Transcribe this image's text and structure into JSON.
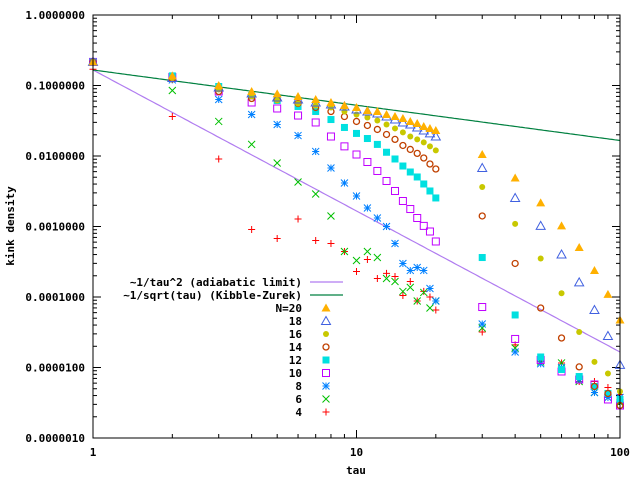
{
  "chart_data": {
    "type": "scatter",
    "xlabel": "tau",
    "ylabel": "kink density",
    "xscale": "log",
    "yscale": "log",
    "xlim": [
      1,
      100
    ],
    "ylim": [
      1e-06,
      1
    ],
    "x_ticks": [
      "1",
      "10",
      "100"
    ],
    "y_ticks": [
      "1.0000000",
      "0.1000000",
      "0.0100000",
      "0.0010000",
      "0.0001000",
      "0.0000100",
      "0.0000010"
    ],
    "grid": false,
    "legend_position": "bottom-left",
    "curves": [
      {
        "name": "~1/tau^2 (adiabatic limit)",
        "formula": "0.166/tau^2",
        "color": "#b07cf0"
      },
      {
        "name": "~1/sqrt(tau) (Kibble-Zurek)",
        "formula": "0.166/sqrt(tau)",
        "color": "#008040"
      }
    ],
    "x": [
      1,
      2,
      3,
      4,
      5,
      6,
      7,
      8,
      9,
      10,
      11,
      12,
      13,
      14,
      15,
      16,
      17,
      18,
      19,
      20,
      30,
      40,
      50,
      60,
      70,
      80,
      90,
      100
    ],
    "series": [
      {
        "name": "N=20",
        "marker": "triangle-filled",
        "color": "#ffb000",
        "values": [
          0.216,
          0.137,
          0.1,
          0.0822,
          0.076,
          0.0698,
          0.0633,
          0.0574,
          0.052,
          0.0488,
          0.044,
          0.0428,
          0.0388,
          0.0363,
          0.034,
          0.0309,
          0.0289,
          0.0262,
          0.0246,
          0.023,
          0.0105,
          0.00488,
          0.00216,
          0.00102,
          0.000504,
          0.000238,
          0.000109,
          4.72e-05
        ]
      },
      {
        "name": "18",
        "marker": "triangle-open",
        "color": "#4060e0",
        "values": [
          0.216,
          0.128,
          0.0937,
          0.077,
          0.0676,
          0.0633,
          0.0574,
          0.0538,
          0.0504,
          0.0457,
          0.0428,
          0.0401,
          0.0363,
          0.0329,
          0.0299,
          0.028,
          0.0254,
          0.023,
          0.0209,
          0.0189,
          0.00676,
          0.00254,
          0.00102,
          0.000401,
          0.000161,
          6.54e-05,
          2.8e-05,
          1.09e-05
        ]
      },
      {
        "name": "16",
        "marker": "circle-filled",
        "color": "#c8c800",
        "values": [
          0.216,
          0.128,
          0.0878,
          0.0698,
          0.0613,
          0.0556,
          0.052,
          0.0488,
          0.0428,
          0.0388,
          0.0352,
          0.0319,
          0.028,
          0.0246,
          0.0216,
          0.0189,
          0.0172,
          0.0156,
          0.0137,
          0.012,
          0.00363,
          0.00109,
          0.000352,
          0.000113,
          3.19e-05,
          1.2e-05,
          8.22e-06,
          4.57e-06
        ]
      },
      {
        "name": "14",
        "marker": "circle-open",
        "color": "#c04000",
        "values": [
          0.216,
          0.124,
          0.0822,
          0.0654,
          0.0633,
          0.0556,
          0.0488,
          0.0428,
          0.0363,
          0.0309,
          0.0271,
          0.0238,
          0.0202,
          0.0172,
          0.0141,
          0.0124,
          0.0109,
          0.00937,
          0.0077,
          0.00654,
          0.00141,
          0.000299,
          6.98e-05,
          2.62e-05,
          1.02e-05,
          5.38e-06,
          4.28e-06,
          2.89e-06
        ]
      },
      {
        "name": "12",
        "marker": "square-filled",
        "color": "#00e0e0",
        "values": [
          0.216,
          0.137,
          0.0968,
          0.0721,
          0.0613,
          0.0504,
          0.0428,
          0.0329,
          0.0254,
          0.0209,
          0.0177,
          0.0146,
          0.0113,
          0.00907,
          0.00721,
          0.00593,
          0.00504,
          0.00401,
          0.00319,
          0.00254,
          0.000363,
          5.56e-05,
          1.41e-05,
          9.37e-06,
          7.45e-06,
          5.38e-06,
          4.28e-06,
          3.52e-06
        ]
      },
      {
        "name": "10",
        "marker": "square-open",
        "color": "#c000ff",
        "values": [
          0.216,
          0.132,
          0.0822,
          0.0574,
          0.0472,
          0.0375,
          0.0299,
          0.0189,
          0.0137,
          0.0105,
          0.00822,
          0.00613,
          0.00442,
          0.00319,
          0.0023,
          0.00177,
          0.00132,
          0.00102,
          0.000849,
          0.000613,
          7.21e-05,
          2.54e-05,
          1.28e-05,
          8.78e-06,
          6.76e-06,
          5.74e-06,
          3.52e-06,
          2.89e-06
        ]
      },
      {
        "name": "8",
        "marker": "asterisk",
        "color": "#0080ff",
        "values": [
          0.216,
          0.12,
          0.0633,
          0.0388,
          0.028,
          0.0195,
          0.0116,
          0.00676,
          0.00414,
          0.00271,
          0.00183,
          0.00132,
          0.001,
          0.000574,
          0.000299,
          0.000238,
          0.000262,
          0.000238,
          0.000132,
          8.78e-05,
          4.14e-05,
          1.66e-05,
          1.13e-05,
          1e-05,
          6.76e-06,
          4.42e-06,
          3.75e-06,
          3.75e-06
        ]
      },
      {
        "name": "6",
        "marker": "cross-x",
        "color": "#00c000",
        "values": [
          0.216,
          0.0849,
          0.0309,
          0.0146,
          0.00796,
          0.00428,
          0.00289,
          0.00141,
          0.000442,
          0.000329,
          0.000442,
          0.000363,
          0.000183,
          0.000166,
          0.00012,
          0.000137,
          8.78e-05,
          0.000116,
          6.98e-05,
          8.78e-05,
          3.63e-05,
          1.89e-05,
          1.2e-05,
          1.16e-05,
          6.33e-06,
          4.42e-06,
          3.75e-06,
          3.19e-06
        ]
      },
      {
        "name": "4",
        "marker": "plus",
        "color": "#ff0000",
        "values": [
          0.17,
          0.0363,
          0.00907,
          0.000907,
          0.000676,
          0.00128,
          0.000633,
          0.000574,
          0.000442,
          0.00023,
          0.00034,
          0.000183,
          0.000216,
          0.000195,
          0.000105,
          0.000166,
          8.78e-05,
          0.00012,
          0.0001,
          6.54e-05,
          3.19e-05,
          2.09e-05,
          1.2e-05,
          1.16e-05,
          6.33e-06,
          6.33e-06,
          5.2e-06,
          4.14e-06
        ]
      }
    ]
  }
}
